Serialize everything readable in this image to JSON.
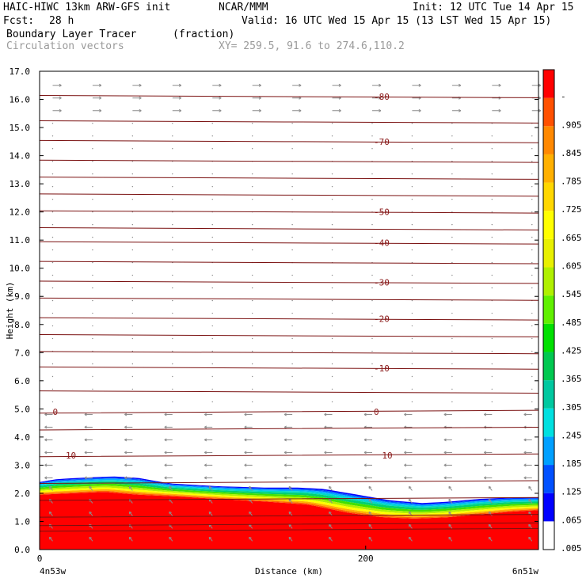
{
  "header": {
    "model": "HAIC-HIWC 13km ARW-GFS init",
    "org": "NCAR/MMM",
    "init": "Init: 12 UTC Tue 14 Apr 15",
    "fcst_label": "Fcst:",
    "fcst_value": "28 h",
    "valid": "Valid: 16 UTC Wed 15 Apr 15 (13 LST Wed 15 Apr 15)",
    "field": "Boundary Layer Tracer",
    "units": "(fraction)",
    "vectors": "Circulation vectors",
    "xy": "XY= 259.5, 91.6 to 274.6,110.2"
  },
  "chart_data": {
    "type": "heatmap",
    "title": "Boundary Layer Tracer",
    "units": "(fraction)",
    "xlabel": "Distance (km)",
    "ylabel": "Height (km)",
    "x_range": [
      0,
      306
    ],
    "ylim": [
      0,
      17
    ],
    "y_ticks": [
      "0.0",
      "1.0",
      "2.0",
      "3.0",
      "4.0",
      "5.0",
      "6.0",
      "7.0",
      "8.0",
      "9.0",
      "10.0",
      "11.0",
      "12.0",
      "13.0",
      "14.0",
      "15.0",
      "16.0",
      "17.0"
    ],
    "x_ticks": [
      {
        "value": 0,
        "label": "0"
      },
      {
        "value": 200,
        "label": "200"
      }
    ],
    "x_end_labels": {
      "left": "4n53w",
      "right": "6n51w"
    },
    "colorbar_labels": [
      ".005",
      ".065",
      ".125",
      ".185",
      ".245",
      ".305",
      ".365",
      ".425",
      ".485",
      ".545",
      ".605",
      ".665",
      ".725",
      ".785",
      ".845",
      ".905",
      "-"
    ],
    "colorbar_colors": [
      "#ffffff",
      "#0000ff",
      "#0050ff",
      "#00a0ff",
      "#00e0e0",
      "#00c8a0",
      "#00c850",
      "#00e000",
      "#60f000",
      "#b0f000",
      "#e8f000",
      "#ffff00",
      "#ffd700",
      "#ffb000",
      "#ff8800",
      "#ff5000",
      "#ff0000"
    ],
    "tracer_top_km": [
      [
        0,
        2.4
      ],
      [
        10,
        2.5
      ],
      [
        25,
        2.55
      ],
      [
        45,
        2.6
      ],
      [
        60,
        2.55
      ],
      [
        80,
        2.35
      ],
      [
        110,
        2.25
      ],
      [
        140,
        2.2
      ],
      [
        160,
        2.2
      ],
      [
        175,
        2.15
      ],
      [
        195,
        1.95
      ],
      [
        215,
        1.75
      ],
      [
        235,
        1.65
      ],
      [
        250,
        1.7
      ],
      [
        270,
        1.8
      ],
      [
        290,
        1.85
      ],
      [
        306,
        1.85
      ]
    ],
    "tracer_full_top_km": [
      [
        0,
        1.95
      ],
      [
        20,
        2.0
      ],
      [
        40,
        2.05
      ],
      [
        60,
        1.95
      ],
      [
        80,
        1.9
      ],
      [
        110,
        1.8
      ],
      [
        140,
        1.7
      ],
      [
        165,
        1.6
      ],
      [
        190,
        1.3
      ],
      [
        210,
        1.15
      ],
      [
        230,
        1.1
      ],
      [
        250,
        1.15
      ],
      [
        270,
        1.25
      ],
      [
        290,
        1.35
      ],
      [
        306,
        1.4
      ]
    ],
    "isotherm_labels": [
      {
        "text": "-80",
        "x": 205,
        "y": 16.1
      },
      {
        "text": "-70",
        "x": 205,
        "y": 14.5
      },
      {
        "text": "-50",
        "x": 205,
        "y": 12.0
      },
      {
        "text": "-40",
        "x": 205,
        "y": 10.9
      },
      {
        "text": "-30",
        "x": 205,
        "y": 9.5
      },
      {
        "text": "-20",
        "x": 205,
        "y": 8.2
      },
      {
        "text": "-10",
        "x": 205,
        "y": 6.45
      },
      {
        "text": "0",
        "x": 8,
        "y": 4.9
      },
      {
        "text": "0",
        "x": 205,
        "y": 4.9
      },
      {
        "text": "10",
        "x": 16,
        "y": 3.35
      },
      {
        "text": "10",
        "x": 210,
        "y": 3.35
      }
    ],
    "contour_levels_km": [
      16.1,
      15.2,
      14.5,
      13.8,
      13.2,
      12.6,
      12.0,
      11.4,
      10.9,
      10.2,
      9.5,
      8.9,
      8.2,
      7.6,
      7.0,
      6.45,
      5.6,
      4.9,
      4.3,
      3.35,
      2.4,
      1.8,
      1.2,
      0.9,
      0.7
    ],
    "grid": false,
    "legend": "right colorbar"
  }
}
